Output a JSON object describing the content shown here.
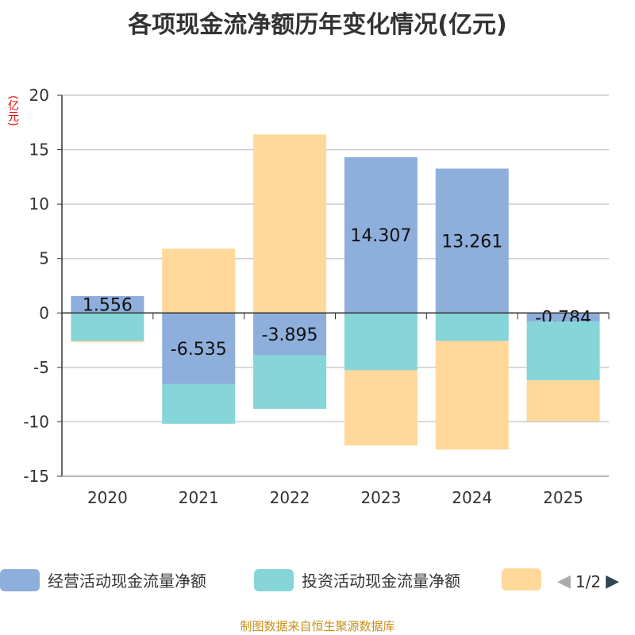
{
  "title": "各项现金流净额历年变化情况(亿元)",
  "unit": "(亿元)",
  "source": "制图数据来自恒生聚源数据库",
  "legend": {
    "items": [
      "经营活动现金流量净额",
      "投资活动现金流量净额",
      ""
    ],
    "page": "1/2"
  },
  "chart_data": {
    "type": "bar",
    "stacked": true,
    "categories": [
      "2020",
      "2021",
      "2022",
      "2023",
      "2024",
      "2025"
    ],
    "ylim": [
      -15,
      20
    ],
    "yticks": [
      "-15",
      "-10",
      "-5",
      "0",
      "5",
      "10",
      "15",
      "20"
    ],
    "grid": true,
    "legend_position": "bottom",
    "series": [
      {
        "name": "经营活动现金流量净额",
        "color": "#8eaedb",
        "values": [
          1.556,
          -6.535,
          -3.895,
          14.307,
          13.261,
          -0.784
        ],
        "labels": [
          "1.556",
          "-6.535",
          "-3.895",
          "14.307",
          "13.261",
          "-0.784"
        ]
      },
      {
        "name": "投资活动现金流量净额",
        "color": "#86d5d8",
        "values": [
          -2.58,
          -3.64,
          -4.92,
          -5.26,
          -2.58,
          -5.4
        ]
      },
      {
        "color": "#ffd89a",
        "values": [
          -0.1,
          5.9,
          16.4,
          -6.91,
          -9.97,
          -3.75
        ]
      }
    ]
  }
}
